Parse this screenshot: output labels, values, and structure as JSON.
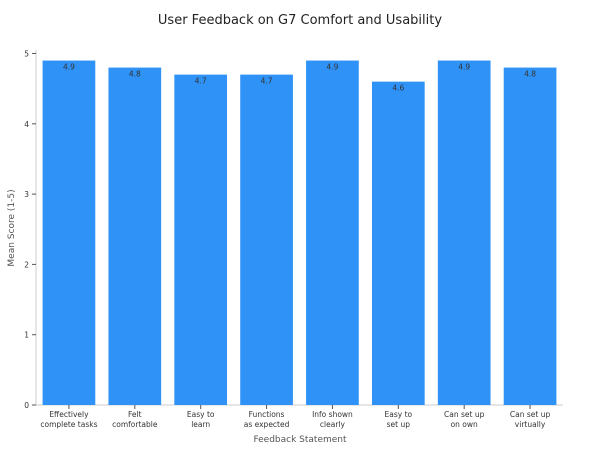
{
  "chart_data": {
    "type": "bar",
    "title": "User Feedback on G7 Comfort and Usability",
    "xlabel": "Feedback Statement",
    "ylabel": "Mean Score (1-5)",
    "categories": [
      [
        "Effectively",
        "complete tasks"
      ],
      [
        "Felt",
        "comfortable"
      ],
      [
        "Easy to",
        "learn"
      ],
      [
        "Functions",
        "as expected"
      ],
      [
        "Info shown",
        "clearly"
      ],
      [
        "Easy to",
        "set up"
      ],
      [
        "Can set up",
        "on own"
      ],
      [
        "Can set up",
        "virtually"
      ]
    ],
    "values": [
      4.9,
      4.8,
      4.7,
      4.7,
      4.9,
      4.6,
      4.9,
      4.8
    ],
    "value_labels": [
      "4.9",
      "4.8",
      "4.7",
      "4.7",
      "4.9",
      "4.6",
      "4.9",
      "4.8"
    ],
    "ylim": [
      0,
      5.05
    ],
    "yticks": [
      0,
      1,
      2,
      3,
      4,
      5
    ],
    "ytick_labels": [
      "0",
      "1",
      "2",
      "3",
      "4",
      "5"
    ],
    "grid": false,
    "bar_color": "#2f92f7",
    "axis_color": "#cccccc"
  }
}
